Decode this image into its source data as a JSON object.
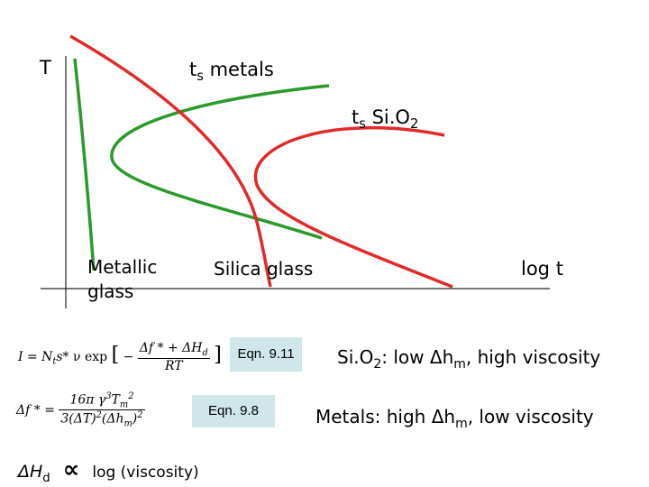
{
  "diagram": {
    "y_axis_label": "T",
    "x_axis_label": "log t",
    "curve_ts_metals": {
      "label_main": "t",
      "label_sub": "s",
      "label_rest": " metals",
      "color": "#e02a2a"
    },
    "curve_ts_sio2": {
      "label_main": "t",
      "label_sub": "s",
      "label_rest": " Si.O",
      "label_sub2": "2",
      "color": "#e02a2a"
    },
    "curve_green_color": "#2a9a2a",
    "region_metallic_glass": "Metallic\nglass",
    "region_silica_glass": "Silica glass"
  },
  "equations": {
    "eqn_911_label": "Eqn. 9.11",
    "eqn_98_label": "Eqn. 9.8",
    "box_color": "#cfe6ea",
    "eqn_911": {
      "lhs": "I = N",
      "t_sub": "t",
      "s_part": "s",
      "nu_exp": "* ν exp",
      "num": "Δf * + ΔH",
      "num_sub": "d",
      "den": "RT"
    },
    "eqn_98": {
      "lhs": "Δf * =",
      "num": "16π γ",
      "num_sup": "3",
      "num_tm": "T",
      "num_tm_sub": "m",
      "num_tm_sup": "2",
      "den": "3(ΔT)",
      "den_sup": "2",
      "den_hm": "(Δh",
      "den_hm_sub": "m",
      "den_end": ")",
      "den_end_sup": "2"
    }
  },
  "notes": {
    "sio2_note": {
      "prefix": "Si.O",
      "prefix_sub": "2",
      "middle": ": low Δh",
      "middle_sub": "m",
      "suffix": ", high viscosity"
    },
    "metals_note": {
      "prefix": "Metals: high Δh",
      "prefix_sub": "m",
      "suffix": ", low viscosity"
    },
    "hd_relation": {
      "prefix": "ΔH",
      "prefix_sub": "d",
      "symbol": "∝",
      "suffix": "log (viscosity)"
    }
  }
}
